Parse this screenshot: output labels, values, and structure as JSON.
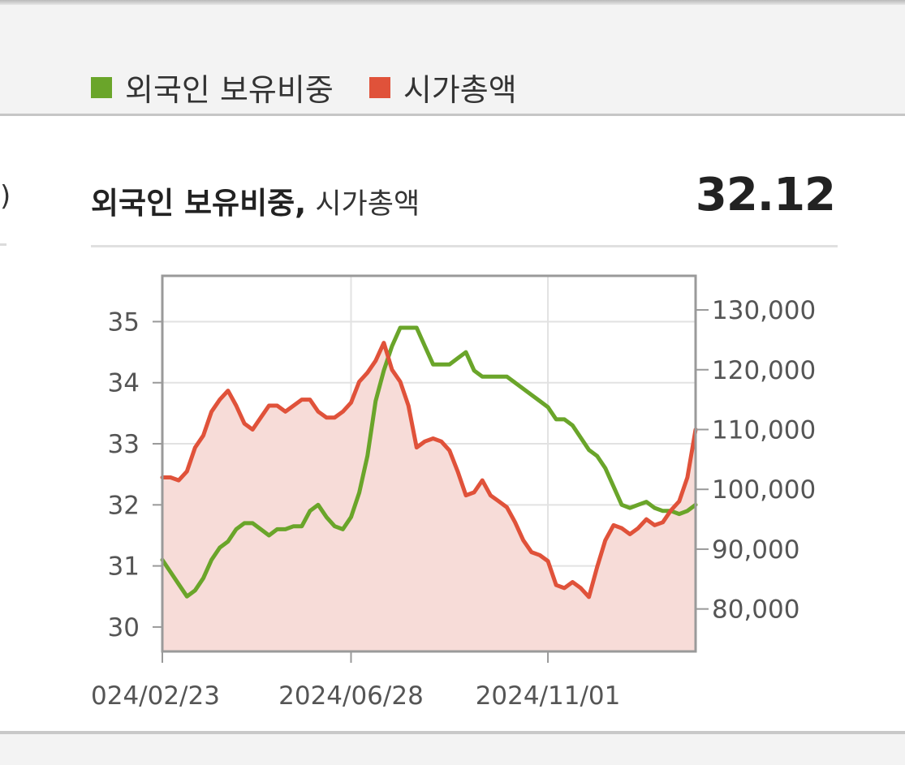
{
  "legend": {
    "items": [
      {
        "label": "외국인 보유비중",
        "color": "#6aa52a"
      },
      {
        "label": "시가총액",
        "color": "#e0523a"
      }
    ]
  },
  "header": {
    "left_edge_glyph": ")",
    "title_bold": "외국인 보유비중,",
    "title_rest": " 시가총액",
    "value": "32.12"
  },
  "chart_data": {
    "type": "line",
    "x_tick_labels": [
      "024/02/23",
      "2024/06/28",
      "2024/11/01"
    ],
    "y_left": {
      "ticks": [
        30,
        31,
        32,
        33,
        34,
        35
      ],
      "range": [
        29.6,
        35.75
      ]
    },
    "y_right": {
      "ticks": [
        "80,000",
        "90,000",
        "100,000",
        "110,000",
        "120,000",
        "130,000"
      ],
      "range": [
        72900,
        135700
      ]
    },
    "grid": true,
    "series": [
      {
        "name": "외국인 보유비중",
        "axis": "left",
        "color": "#6aa52a",
        "area": false,
        "values": [
          31.1,
          30.9,
          30.7,
          30.5,
          30.6,
          30.8,
          31.1,
          31.3,
          31.4,
          31.6,
          31.7,
          31.7,
          31.6,
          31.5,
          31.6,
          31.6,
          31.65,
          31.65,
          31.9,
          32.0,
          31.8,
          31.65,
          31.6,
          31.8,
          32.2,
          32.8,
          33.7,
          34.2,
          34.6,
          34.9,
          34.9,
          34.9,
          34.6,
          34.3,
          34.3,
          34.3,
          34.4,
          34.5,
          34.2,
          34.1,
          34.1,
          34.1,
          34.1,
          34.0,
          33.9,
          33.8,
          33.7,
          33.6,
          33.4,
          33.4,
          33.3,
          33.1,
          32.9,
          32.8,
          32.6,
          32.3,
          32.0,
          31.95,
          32.0,
          32.05,
          31.95,
          31.9,
          31.9,
          31.85,
          31.9,
          32.0
        ]
      },
      {
        "name": "시가총액",
        "axis": "right",
        "color": "#e0523a",
        "area": true,
        "area_color": "#f7dcd8",
        "values": [
          102000,
          102000,
          101500,
          103000,
          107000,
          109000,
          113000,
          115000,
          116500,
          114000,
          111000,
          110000,
          112000,
          114000,
          114000,
          113000,
          114000,
          115000,
          115000,
          113000,
          112000,
          112000,
          113000,
          114500,
          118000,
          119500,
          121500,
          124500,
          120000,
          118000,
          114000,
          107000,
          108000,
          108500,
          108000,
          106500,
          103000,
          99000,
          99500,
          101500,
          99000,
          98000,
          97000,
          94500,
          91500,
          89500,
          89000,
          88000,
          84000,
          83500,
          84500,
          83500,
          82000,
          87000,
          91500,
          94000,
          93500,
          92500,
          93500,
          95000,
          94000,
          94500,
          96500,
          98000,
          102000,
          110000
        ]
      }
    ]
  }
}
